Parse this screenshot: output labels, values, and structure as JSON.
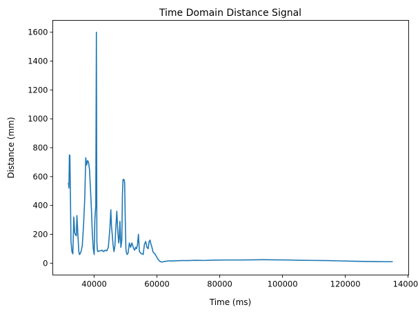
{
  "chart_data": {
    "type": "line",
    "title": "Time Domain Distance Signal",
    "xlabel": "Time (ms)",
    "ylabel": "Distance (mm)",
    "xlim": [
      26800,
      140200
    ],
    "ylim": [
      -82,
      1682
    ],
    "xticks": [
      40000,
      60000,
      80000,
      100000,
      120000,
      140000
    ],
    "yticks": [
      0,
      200,
      400,
      600,
      800,
      1000,
      1200,
      1400,
      1600
    ],
    "grid": false,
    "color": "#1f77b4",
    "series": [
      {
        "x": [
          31800,
          31950,
          32100,
          32250,
          32400,
          32600,
          32900,
          33200,
          33500,
          33800,
          34100,
          34300,
          34500,
          34800,
          35100,
          35300,
          35500,
          35800,
          36200,
          36600,
          37000,
          37300,
          37600,
          37900,
          38200,
          38500,
          38800,
          39100,
          39400,
          39700,
          40000,
          40200,
          40500,
          40700,
          40850,
          41000,
          41200,
          41500,
          42000,
          42500,
          43000,
          43500,
          44000,
          44500,
          45000,
          45300,
          45500,
          45700,
          46000,
          46300,
          46600,
          46900,
          47200,
          47500,
          47800,
          48000,
          48200,
          48500,
          48800,
          49000,
          49200,
          49500,
          49700,
          49900,
          50100,
          50300,
          50500,
          50800,
          51200,
          51600,
          52000,
          52300,
          52600,
          52900,
          53200,
          53500,
          53800,
          54100,
          54400,
          54700,
          55000,
          55300,
          55600,
          56000,
          56400,
          56800,
          57200,
          57500,
          57800,
          58100,
          58400,
          58700,
          59000,
          59300,
          59600,
          60000,
          60400,
          60800,
          61200,
          61600,
          62000,
          62500,
          63000,
          64000,
          65000,
          66000,
          68000,
          70000,
          72000,
          75000,
          78000,
          82000,
          86000,
          90000,
          94000,
          98000,
          102000,
          106000,
          110000,
          114000,
          118000,
          122000,
          126000,
          130000,
          133000,
          135000
        ],
        "values": [
          555,
          520,
          750,
          745,
          520,
          150,
          80,
          65,
          320,
          210,
          195,
          190,
          330,
          200,
          80,
          60,
          65,
          80,
          120,
          260,
          450,
          730,
          680,
          710,
          700,
          650,
          520,
          380,
          210,
          100,
          60,
          300,
          400,
          1600,
          150,
          90,
          80,
          85,
          85,
          90,
          80,
          90,
          85,
          110,
          240,
          370,
          260,
          210,
          130,
          80,
          120,
          250,
          360,
          230,
          140,
          170,
          290,
          110,
          160,
          480,
          580,
          580,
          560,
          300,
          100,
          70,
          60,
          70,
          140,
          110,
          140,
          120,
          100,
          90,
          110,
          100,
          130,
          200,
          80,
          75,
          65,
          65,
          60,
          130,
          150,
          110,
          100,
          150,
          160,
          130,
          110,
          80,
          70,
          65,
          55,
          40,
          25,
          15,
          10,
          8,
          10,
          12,
          14,
          16,
          15,
          17,
          18,
          18,
          20,
          19,
          21,
          22,
          22,
          23,
          24,
          23,
          22,
          20,
          19,
          18,
          16,
          14,
          12,
          11,
          10,
          10
        ]
      }
    ]
  }
}
